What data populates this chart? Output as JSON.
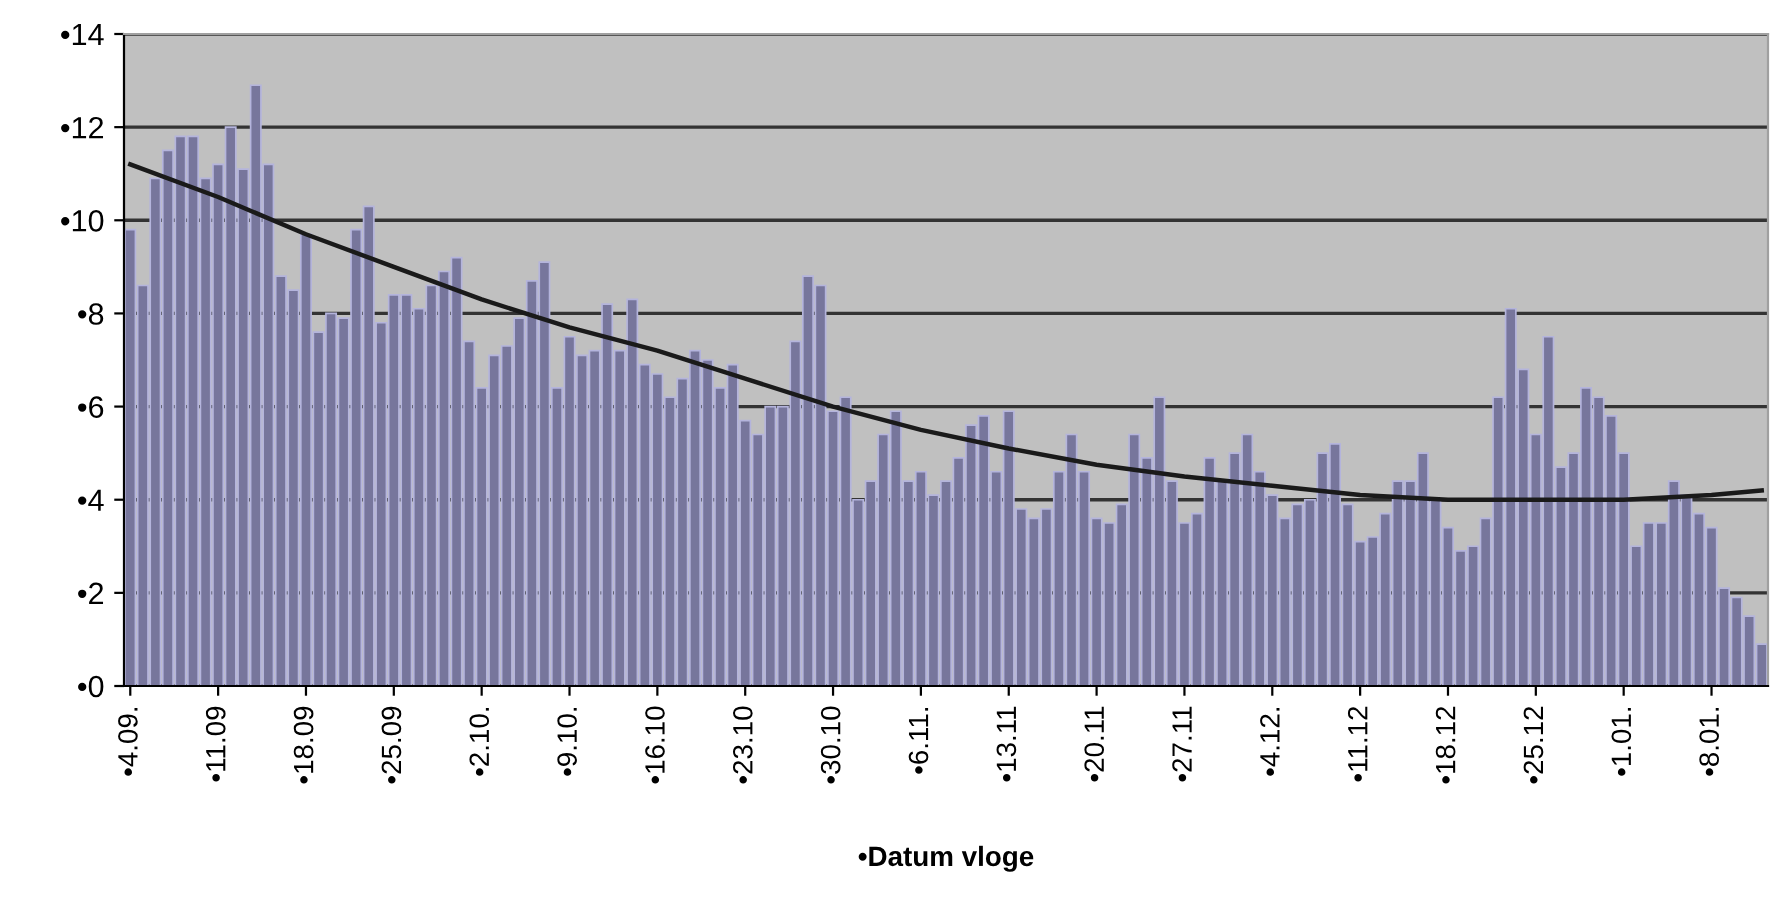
{
  "chart_data": {
    "type": "bar",
    "xlabel": "•Datum vloge",
    "categories": [
      "•4.09.",
      null,
      null,
      null,
      null,
      null,
      null,
      "•11.09",
      null,
      null,
      null,
      null,
      null,
      null,
      "•18.09",
      null,
      null,
      null,
      null,
      null,
      null,
      "•25.09",
      null,
      null,
      null,
      null,
      null,
      null,
      "•2.10.",
      null,
      null,
      null,
      null,
      null,
      null,
      "•9.10.",
      null,
      null,
      null,
      null,
      null,
      null,
      "•16.10",
      null,
      null,
      null,
      null,
      null,
      null,
      "•23.10",
      null,
      null,
      null,
      null,
      null,
      null,
      "•30.10",
      null,
      null,
      null,
      null,
      null,
      null,
      "•6.11.",
      null,
      null,
      null,
      null,
      null,
      null,
      "•13.11",
      null,
      null,
      null,
      null,
      null,
      null,
      "•20.11",
      null,
      null,
      null,
      null,
      null,
      null,
      "•27.11",
      null,
      null,
      null,
      null,
      null,
      null,
      "•4.12.",
      null,
      null,
      null,
      null,
      null,
      null,
      "•11.12",
      null,
      null,
      null,
      null,
      null,
      null,
      "•18.12",
      null,
      null,
      null,
      null,
      null,
      null,
      "•25.12",
      null,
      null,
      null,
      null,
      null,
      null,
      "•1.01.",
      null,
      null,
      null,
      null,
      null,
      null,
      "•8.01.",
      null,
      null,
      null,
      null
    ],
    "series": [
      {
        "color": "#77769c",
        "values": [
          9.8,
          8.6,
          10.9,
          11.5,
          11.8,
          11.8,
          10.9,
          11.2,
          12.0,
          11.1,
          12.9,
          11.2,
          8.8,
          8.5,
          9.7,
          7.6,
          8.0,
          7.9,
          9.8,
          10.3,
          7.8,
          8.4,
          8.4,
          8.1,
          8.6,
          8.9,
          9.2,
          7.4,
          6.4,
          7.1,
          7.3,
          7.9,
          8.7,
          9.1,
          6.4,
          7.5,
          7.1,
          7.2,
          8.2,
          7.2,
          8.3,
          6.9,
          6.7,
          6.2,
          6.6,
          7.2,
          7.0,
          6.4,
          6.9,
          5.7,
          5.4,
          6.0,
          6.0,
          7.4,
          8.8,
          8.6,
          5.9,
          6.2,
          4.0,
          4.4,
          5.4,
          5.9,
          4.4,
          4.6,
          4.1,
          4.4,
          4.9,
          5.6,
          5.8,
          4.6,
          5.9,
          3.8,
          3.6,
          3.8,
          4.6,
          5.4,
          4.6,
          3.6,
          3.5,
          3.9,
          5.4,
          4.9,
          6.2,
          4.4,
          3.5,
          3.7,
          4.9,
          4.4,
          5.0,
          5.4,
          4.6,
          4.1,
          3.6,
          3.9,
          4.0,
          5.0,
          5.2,
          3.9,
          3.1,
          3.2,
          3.7,
          4.4,
          4.4,
          5.0,
          4.0,
          3.4,
          2.9,
          3.0,
          3.6,
          6.2,
          8.1,
          6.8,
          5.4,
          7.5,
          4.7,
          5.0,
          6.4,
          6.2,
          5.8,
          5.0,
          3.0,
          3.5,
          3.5,
          4.4,
          4.1,
          3.7,
          3.4,
          2.1,
          1.9,
          1.5,
          0.9
        ]
      },
      {
        "type": "line",
        "color": "#1a1a1a",
        "values": [
          11.2,
          null,
          null,
          null,
          null,
          null,
          null,
          10.5,
          null,
          null,
          null,
          null,
          null,
          null,
          9.7,
          null,
          null,
          null,
          null,
          null,
          null,
          9.0,
          null,
          null,
          null,
          null,
          null,
          null,
          8.3,
          null,
          null,
          null,
          null,
          null,
          null,
          7.7,
          null,
          null,
          null,
          null,
          null,
          null,
          7.2,
          null,
          null,
          null,
          null,
          null,
          null,
          6.6,
          null,
          null,
          null,
          null,
          null,
          null,
          6.0,
          null,
          null,
          null,
          null,
          null,
          null,
          5.5,
          null,
          null,
          null,
          null,
          null,
          null,
          5.1,
          null,
          null,
          null,
          null,
          null,
          null,
          4.75,
          null,
          null,
          null,
          null,
          null,
          null,
          4.5,
          null,
          null,
          null,
          null,
          null,
          null,
          4.3,
          null,
          null,
          null,
          null,
          null,
          null,
          4.1,
          null,
          null,
          null,
          null,
          null,
          null,
          4.0,
          null,
          null,
          null,
          null,
          null,
          null,
          4.0,
          null,
          null,
          null,
          null,
          null,
          null,
          4.0,
          null,
          null,
          null,
          null,
          null,
          null,
          4.1,
          null,
          null,
          null,
          4.2
        ]
      }
    ],
    "ylim": [
      0,
      14
    ],
    "yticks": [
      {
        "value": 0,
        "label": "•0"
      },
      {
        "value": 2,
        "label": "•2"
      },
      {
        "value": 4,
        "label": "•4"
      },
      {
        "value": 6,
        "label": "•6"
      },
      {
        "value": 8,
        "label": "•8"
      },
      {
        "value": 10,
        "label": "•10"
      },
      {
        "value": 12,
        "label": "•12"
      },
      {
        "value": 14,
        "label": "•14"
      }
    ],
    "grid": "y",
    "legend": false
  }
}
